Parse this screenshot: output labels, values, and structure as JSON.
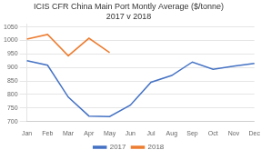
{
  "chart_data": {
    "type": "line",
    "title": "ICIS CFR China Main Port Montly Average ($/tonne)\n2017 v 2018",
    "categories": [
      "Jan",
      "Feb",
      "Mar",
      "Apr",
      "May",
      "Jun",
      "Jul",
      "Aug",
      "Sep",
      "Oct",
      "Nov",
      "Dec"
    ],
    "series": [
      {
        "name": "2017",
        "color": "#4472C4",
        "values": [
          925,
          908,
          790,
          720,
          718,
          760,
          845,
          870,
          920,
          893,
          905,
          915
        ]
      },
      {
        "name": "2018",
        "color": "#ED7D31",
        "values": [
          1005,
          1022,
          943,
          1008,
          955,
          null,
          null,
          null,
          null,
          null,
          null,
          null
        ]
      }
    ],
    "ylim": [
      700,
      1060
    ],
    "yticks": [
      700,
      750,
      800,
      850,
      900,
      950,
      1000,
      1050
    ],
    "grid": true,
    "legend": "bottom"
  }
}
